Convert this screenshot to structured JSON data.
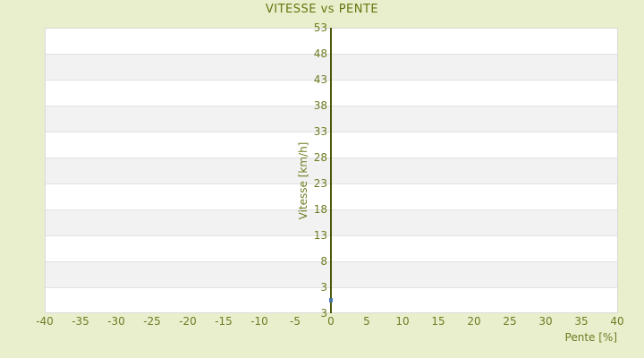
{
  "chart": {
    "title": "VITESSE vs PENTE",
    "y_axis": {
      "title": "Vitesse [km/h]",
      "tick_labels_top_to_bottom": [
        "53",
        "48",
        "43",
        "38",
        "33",
        "28",
        "23",
        "18",
        "13",
        "8",
        "3",
        "3"
      ]
    },
    "x_axis": {
      "title": "Pente [%]",
      "tick_labels_left_to_right": [
        "-40",
        "-35",
        "-30",
        "-25",
        "-20",
        "-15",
        "-10",
        "-5",
        "0",
        "5",
        "10",
        "15",
        "20",
        "25",
        "30",
        "35",
        "40"
      ]
    },
    "colors": {
      "bg": "#e9eecd",
      "plot_bg": "#ffffff",
      "band": "#f2f2f2",
      "gridline": "#e2e2e2",
      "plot_border": "#d9dadb",
      "axis_line": "#4b5a0a",
      "text": "#6e7c22",
      "title_text": "#68760f",
      "point": "#4878a8"
    }
  },
  "chart_data": {
    "type": "scatter",
    "title": "VITESSE vs PENTE",
    "xlabel": "Pente [%]",
    "ylabel": "Vitesse [km/h]",
    "xlim": [
      -40,
      40
    ],
    "ylim": [
      -2,
      53
    ],
    "x_ticks": [
      -40,
      -35,
      -30,
      -25,
      -20,
      -15,
      -10,
      -5,
      0,
      5,
      10,
      15,
      20,
      25,
      30,
      35,
      40
    ],
    "y_tick_labels_top_to_bottom": [
      "53",
      "48",
      "43",
      "38",
      "33",
      "28",
      "23",
      "18",
      "13",
      "8",
      "3",
      "3"
    ],
    "grid": "horizontal alternating bands every 5 units, no vertical gridlines",
    "legend": "none",
    "vertical_axis_line_at_x": 0,
    "series": [
      {
        "name": "Vitesse",
        "marker": "small square",
        "points": [
          {
            "x": 0,
            "y": 0.5
          }
        ]
      }
    ]
  }
}
